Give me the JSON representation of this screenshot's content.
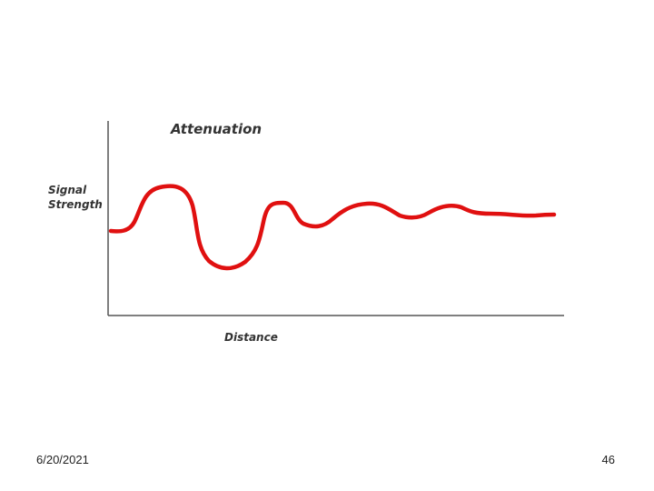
{
  "diagram": {
    "title": "Attenuation",
    "y_axis_label": [
      "Signal",
      "Strength"
    ],
    "x_axis_label": "Distance"
  },
  "footer": {
    "date": "6/20/2021",
    "page_number": "46"
  }
}
